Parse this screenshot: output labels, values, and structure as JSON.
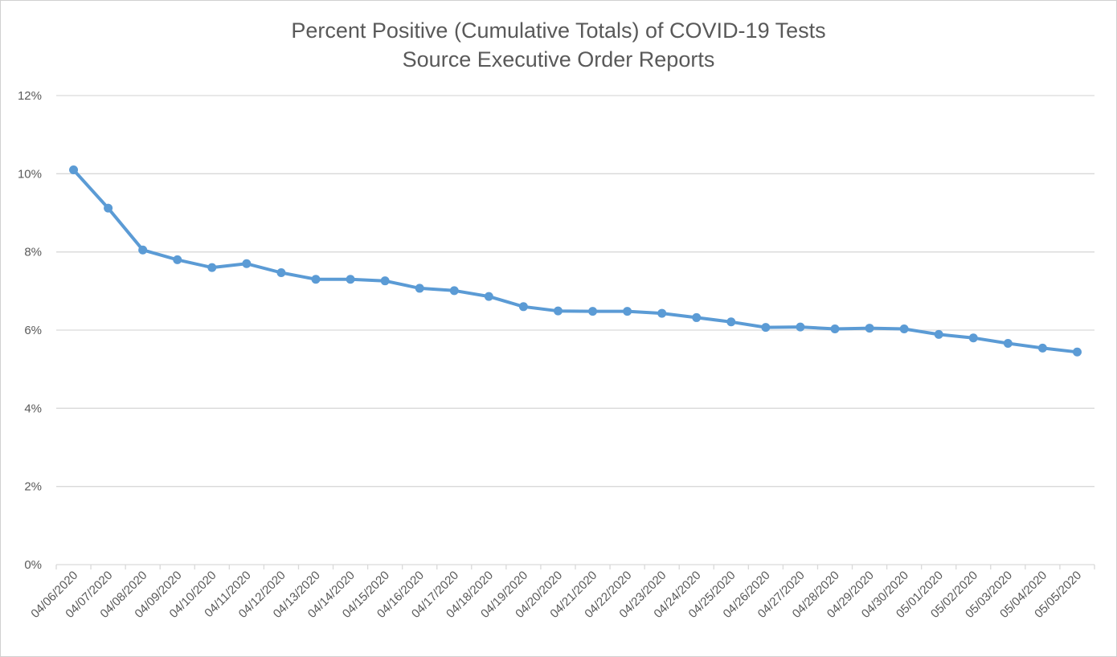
{
  "chart_data": {
    "type": "line",
    "title": "Percent Positive (Cumulative Totals) of COVID-19 Tests",
    "subtitle": "Source Executive Order Reports",
    "xlabel": "",
    "ylabel": "",
    "ylim": [
      0,
      12
    ],
    "yticks": [
      "0%",
      "2%",
      "4%",
      "6%",
      "8%",
      "10%",
      "12%"
    ],
    "grid": true,
    "legend": "none",
    "line_color": "#5B9BD5",
    "categories": [
      "04/06/2020",
      "04/07/2020",
      "04/08/2020",
      "04/09/2020",
      "04/10/2020",
      "04/11/2020",
      "04/12/2020",
      "04/13/2020",
      "04/14/2020",
      "04/15/2020",
      "04/16/2020",
      "04/17/2020",
      "04/18/2020",
      "04/19/2020",
      "04/20/2020",
      "04/21/2020",
      "04/22/2020",
      "04/23/2020",
      "04/24/2020",
      "04/25/2020",
      "04/26/2020",
      "04/27/2020",
      "04/28/2020",
      "04/29/2020",
      "04/30/2020",
      "05/01/2020",
      "05/02/2020",
      "05/03/2020",
      "05/04/2020",
      "05/05/2020"
    ],
    "values": [
      10.1,
      9.12,
      8.05,
      7.8,
      7.6,
      7.7,
      7.47,
      7.3,
      7.3,
      7.26,
      7.07,
      7.01,
      6.86,
      6.6,
      6.49,
      6.48,
      6.48,
      6.43,
      6.32,
      6.21,
      6.07,
      6.08,
      6.03,
      6.05,
      6.03,
      5.89,
      5.8,
      5.66,
      5.54,
      5.44
    ]
  }
}
